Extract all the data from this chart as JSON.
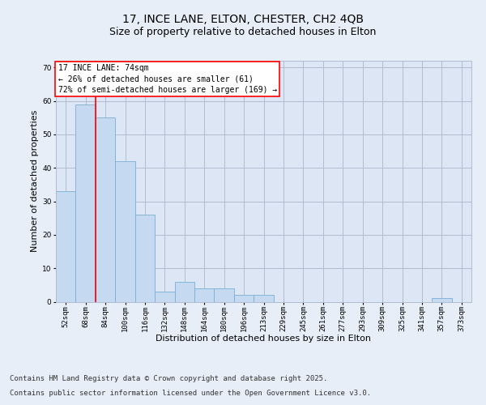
{
  "title_line1": "17, INCE LANE, ELTON, CHESTER, CH2 4QB",
  "title_line2": "Size of property relative to detached houses in Elton",
  "xlabel": "Distribution of detached houses by size in Elton",
  "ylabel": "Number of detached properties",
  "categories": [
    "52sqm",
    "68sqm",
    "84sqm",
    "100sqm",
    "116sqm",
    "132sqm",
    "148sqm",
    "164sqm",
    "180sqm",
    "196sqm",
    "213sqm",
    "229sqm",
    "245sqm",
    "261sqm",
    "277sqm",
    "293sqm",
    "309sqm",
    "325sqm",
    "341sqm",
    "357sqm",
    "373sqm"
  ],
  "values": [
    33,
    59,
    55,
    42,
    26,
    3,
    6,
    4,
    4,
    2,
    2,
    0,
    0,
    0,
    0,
    0,
    0,
    0,
    0,
    1,
    0
  ],
  "bar_color": "#c5d9f1",
  "bar_edge_color": "#7bafd4",
  "red_line_x": 1.5,
  "annotation_text": "17 INCE LANE: 74sqm\n← 26% of detached houses are smaller (61)\n72% of semi-detached houses are larger (169) →",
  "ylim": [
    0,
    72
  ],
  "yticks": [
    0,
    10,
    20,
    30,
    40,
    50,
    60,
    70
  ],
  "footer_line1": "Contains HM Land Registry data © Crown copyright and database right 2025.",
  "footer_line2": "Contains public sector information licensed under the Open Government Licence v3.0.",
  "background_color": "#e8eef8",
  "plot_bg_color": "#dce6f5",
  "grid_color": "#b0bcd0",
  "title_fontsize": 10,
  "subtitle_fontsize": 9,
  "label_fontsize": 8,
  "tick_fontsize": 6.5,
  "annotation_fontsize": 7,
  "footer_fontsize": 6.5
}
